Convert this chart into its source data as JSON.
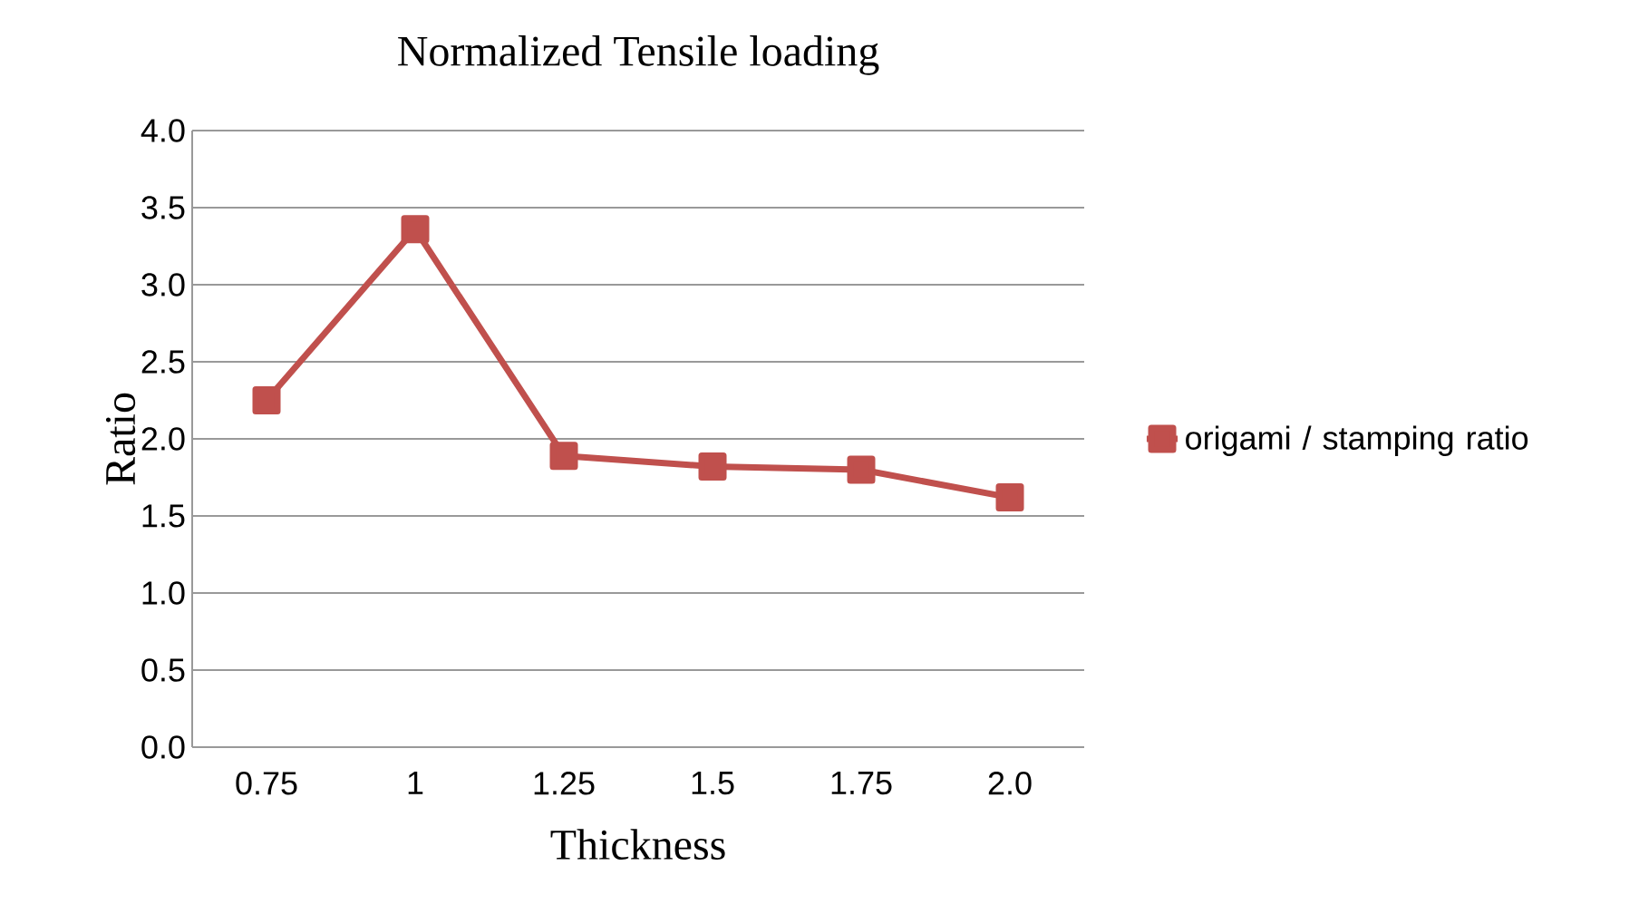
{
  "chart_data": {
    "type": "line",
    "title": "Normalized Tensile loading",
    "xlabel": "Thickness",
    "ylabel": "Ratio",
    "categories": [
      "0.75",
      "1",
      "1.25",
      "1.5",
      "1.75",
      "2.0"
    ],
    "series": [
      {
        "name": "origami / stamping ratio",
        "color": "#c0504d",
        "values": [
          2.25,
          3.36,
          1.89,
          1.82,
          1.8,
          1.62
        ]
      }
    ],
    "ylim": [
      0,
      4
    ],
    "yticks": [
      {
        "value": 0,
        "label": "0.0"
      },
      {
        "value": 0.5,
        "label": "0.5"
      },
      {
        "value": 1,
        "label": "1.0"
      },
      {
        "value": 1.5,
        "label": "1.5"
      },
      {
        "value": 2,
        "label": "2.0"
      },
      {
        "value": 2.5,
        "label": "2.5"
      },
      {
        "value": 3,
        "label": "3.0"
      },
      {
        "value": 3.5,
        "label": "3.5"
      },
      {
        "value": 4,
        "label": "4.0"
      }
    ],
    "grid": "y",
    "legend": "right",
    "marker": "square",
    "line_style": "solid"
  }
}
